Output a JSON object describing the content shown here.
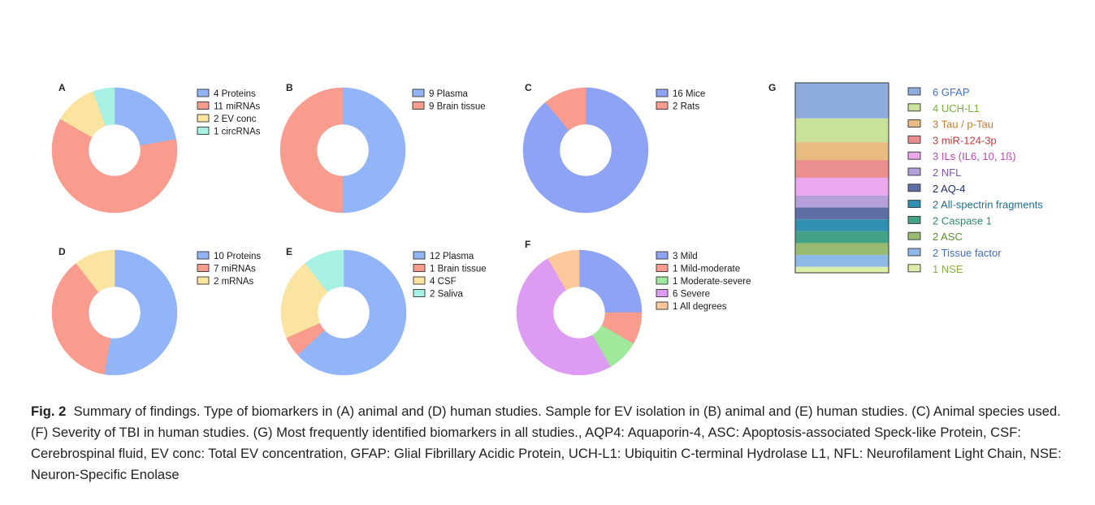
{
  "figure": {
    "caption_label": "Fig. 2",
    "caption_text": "Summary of findings. Type of biomarkers in (A) animal and (D) human studies. Sample for EV isolation in (B) animal and (E) human studies. (C) Animal species used. (F) Severity of TBI in human studies. (G) Most frequently identified biomarkers in all studies., AQP4: Aquaporin-4, ASC: Apoptosis-associated Speck-like Protein, CSF: Cerebrospinal fluid, EV conc: Total EV concentration, GFAP: Glial Fibrillary Acidic Protein, UCH-L1: Ubiquitin C-terminal Hydrolase L1, NFL: Neurofilament Light Chain, NSE: Neuron-Specific Enolase"
  },
  "chart_data": [
    {
      "panel": "A",
      "type": "pie",
      "donut": true,
      "slices": [
        {
          "value": 4,
          "label": "4 Proteins",
          "color": "#92b4f8"
        },
        {
          "value": 11,
          "label": "11 miRNAs",
          "color": "#f99c8e"
        },
        {
          "value": 2,
          "label": "2 EV conc",
          "color": "#fbe3a0"
        },
        {
          "value": 1,
          "label": "1 circRNAs",
          "color": "#a6f0e4"
        }
      ]
    },
    {
      "panel": "B",
      "type": "pie",
      "donut": true,
      "slices": [
        {
          "value": 9,
          "label": "9 Plasma",
          "color": "#92b4f8"
        },
        {
          "value": 9,
          "label": "9 Brain tissue",
          "color": "#f99c8e"
        }
      ]
    },
    {
      "panel": "C",
      "type": "pie",
      "donut": true,
      "slices": [
        {
          "value": 16,
          "label": "16 Mice",
          "color": "#8ea3f6"
        },
        {
          "value": 2,
          "label": "2 Rats",
          "color": "#f99c8e"
        }
      ]
    },
    {
      "panel": "D",
      "type": "pie",
      "donut": true,
      "slices": [
        {
          "value": 10,
          "label": "10 Proteins",
          "color": "#92b4f8"
        },
        {
          "value": 7,
          "label": "7 miRNAs",
          "color": "#f99c8e"
        },
        {
          "value": 2,
          "label": "2 mRNAs",
          "color": "#fbe3a0"
        }
      ]
    },
    {
      "panel": "E",
      "type": "pie",
      "donut": true,
      "slices": [
        {
          "value": 12,
          "label": "12 Plasma",
          "color": "#92b4f8"
        },
        {
          "value": 1,
          "label": "1 Brain tissue",
          "color": "#f99c8e"
        },
        {
          "value": 4,
          "label": "4 CSF",
          "color": "#fbe3a0"
        },
        {
          "value": 2,
          "label": "2 Saliva",
          "color": "#a6f0e4"
        }
      ]
    },
    {
      "panel": "F",
      "type": "pie",
      "donut": true,
      "slices": [
        {
          "value": 3,
          "label": "3 Mild",
          "color": "#8ea3f6"
        },
        {
          "value": 1,
          "label": "1 Mild-moderate",
          "color": "#f99c8e"
        },
        {
          "value": 1,
          "label": "1 Moderate-severe",
          "color": "#a0e89a"
        },
        {
          "value": 6,
          "label": "6 Severe",
          "color": "#dd9cf1"
        },
        {
          "value": 1,
          "label": "1 All degrees",
          "color": "#fbc79b"
        }
      ]
    },
    {
      "panel": "G",
      "type": "bar",
      "stacked": true,
      "segments": [
        {
          "value": 6,
          "label": "6 GFAP",
          "color": "#8eaddc",
          "text_color": "#4472c4"
        },
        {
          "value": 4,
          "label": "4 UCH-L1",
          "color": "#c9e29a",
          "text_color": "#7ab03a"
        },
        {
          "value": 3,
          "label": "3 Tau / p-Tau",
          "color": "#e8bb80",
          "text_color": "#c07a2e"
        },
        {
          "value": 3,
          "label": "3 miR-124-3p",
          "color": "#ea8e8e",
          "text_color": "#c43a3a"
        },
        {
          "value": 3,
          "label": "3 ILs (IL6, 10, 1ß)",
          "color": "#eca8ee",
          "text_color": "#c046b8"
        },
        {
          "value": 2,
          "label": "2 NFL",
          "color": "#b6a0dc",
          "text_color": "#7d55b8"
        },
        {
          "value": 2,
          "label": "2 AQ-4",
          "color": "#5e6fa6",
          "text_color": "#1f2d6e"
        },
        {
          "value": 2,
          "label": "2 All-spectrin fragments",
          "color": "#2f8fb0",
          "text_color": "#1d6e8e"
        },
        {
          "value": 2,
          "label": "2 Caspase 1",
          "color": "#41a286",
          "text_color": "#2a8a6a"
        },
        {
          "value": 2,
          "label": "2 ASC",
          "color": "#97bb70",
          "text_color": "#5e8e2c"
        },
        {
          "value": 2,
          "label": "2 Tissue factor",
          "color": "#8eb8e6",
          "text_color": "#3f6fb8"
        },
        {
          "value": 1,
          "label": "1 NSE",
          "color": "#dcefa8",
          "text_color": "#88b040"
        }
      ]
    }
  ]
}
